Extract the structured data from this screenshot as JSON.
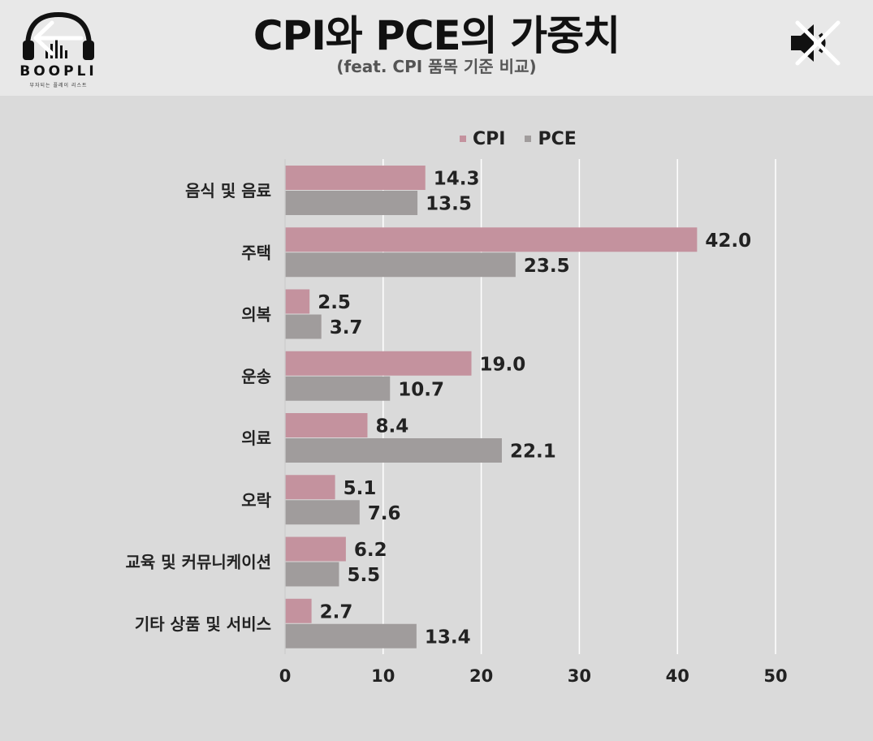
{
  "header": {
    "logo_text": "BOOPLI",
    "logo_sub": "부자되는 플레이 리스트",
    "title": "CPI와 PCE의 가중치",
    "subtitle": "(feat. CPI 품목 기준 비교)"
  },
  "colors": {
    "cpi": "#c4929e",
    "pce": "#a09c9c",
    "grid": "#ffffff",
    "background": "#dadada"
  },
  "icons": {
    "back": "back-arrow-icon",
    "mute": "speaker-muted-icon"
  },
  "chart_data": {
    "type": "bar",
    "orientation": "horizontal",
    "categories": [
      "음식 및 음료",
      "주택",
      "의복",
      "운송",
      "의료",
      "오락",
      "교육 및 커뮤니케이션",
      "기타 상품 및 서비스"
    ],
    "series": [
      {
        "name": "CPI",
        "values": [
          14.3,
          42.0,
          2.5,
          19.0,
          8.4,
          5.1,
          6.2,
          2.7
        ]
      },
      {
        "name": "PCE",
        "values": [
          13.5,
          23.5,
          3.7,
          10.7,
          22.1,
          7.6,
          5.5,
          13.4
        ]
      }
    ],
    "data_labels": [
      [
        "14.3",
        "42.0",
        "2.5",
        "19.0",
        "8.4",
        "5.1",
        "6.2",
        "2.7"
      ],
      [
        "13.5",
        "23.5",
        "3.7",
        "10.7",
        "22.1",
        "7.6",
        "5.5",
        "13.4"
      ]
    ],
    "xlim": [
      0,
      50
    ],
    "xticks": [
      0,
      10,
      20,
      30,
      40,
      50
    ],
    "xtick_labels": [
      "0",
      "10",
      "20",
      "30",
      "40",
      "50"
    ],
    "grid": true,
    "legend": "top"
  }
}
